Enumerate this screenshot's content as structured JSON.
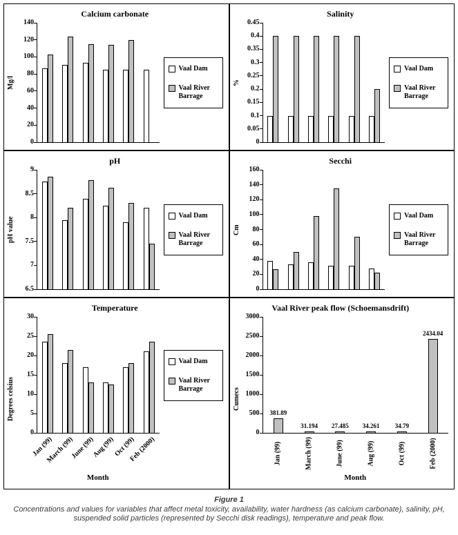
{
  "figure": {
    "caption_title": "Figure 1",
    "caption_text": "Concentrations and values for variables that affect metal toxicity, availability, water hardness (as calcium carbonate), salinity, pH, suspended solid particles (represented by Secchi disk readings), temperature and peak flow."
  },
  "colors": {
    "vaal_dam_fill": "#ffffff",
    "vaal_river_barrage_fill": "#c0c0c0",
    "axis_and_border": "#000000"
  },
  "chart_data": [
    {
      "id": "calcium-carbonate",
      "type": "bar",
      "title": "Calcium carbonate",
      "ylabel": "Mg/l",
      "xlabel": "",
      "ylim": [
        0,
        140
      ],
      "yticks": [
        0,
        20,
        40,
        60,
        80,
        100,
        120,
        140
      ],
      "categories": [
        "Jan (99)",
        "March (99)",
        "June (99)",
        "Aug (99)",
        "Oct (99)",
        "Feb (2000)"
      ],
      "series": [
        {
          "name": "Vaal Dam",
          "fill": "#ffffff",
          "values": [
            87,
            91,
            93,
            85,
            85,
            85
          ]
        },
        {
          "name": "Vaal River Barrage",
          "fill": "#c0c0c0",
          "values": [
            103,
            124,
            115,
            114,
            120,
            null
          ]
        }
      ],
      "grid": false,
      "legend": true,
      "legend_position": "right",
      "show_x_tick_labels": false,
      "x_tick_rotation": 0,
      "data_labels": false
    },
    {
      "id": "salinity",
      "type": "bar",
      "title": "Salinity",
      "ylabel": "%",
      "xlabel": "",
      "ylim": [
        0,
        0.45
      ],
      "yticks": [
        0,
        0.05,
        0.1,
        0.15,
        0.2,
        0.25,
        0.3,
        0.35,
        0.4,
        0.45
      ],
      "categories": [
        "Jan (99)",
        "March (99)",
        "June (99)",
        "Aug (99)",
        "Oct (99)",
        "Feb (2000)"
      ],
      "series": [
        {
          "name": "Vaal Dam",
          "fill": "#ffffff",
          "values": [
            0.1,
            0.1,
            0.1,
            0.1,
            0.1,
            0.1
          ]
        },
        {
          "name": "Vaal River Barrage",
          "fill": "#c0c0c0",
          "values": [
            0.4,
            0.4,
            0.4,
            0.4,
            0.4,
            0.2
          ]
        }
      ],
      "grid": false,
      "legend": true,
      "legend_position": "right",
      "show_x_tick_labels": false,
      "x_tick_rotation": 0,
      "data_labels": false
    },
    {
      "id": "ph",
      "type": "bar",
      "title": "pH",
      "ylabel": "pH value",
      "xlabel": "",
      "ylim": [
        6.5,
        9
      ],
      "yticks": [
        6.5,
        7,
        7.5,
        8,
        8.5,
        9
      ],
      "categories": [
        "Jan (99)",
        "March (99)",
        "June (99)",
        "Aug (99)",
        "Oct (99)",
        "Feb (2000)"
      ],
      "series": [
        {
          "name": "Vaal Dam",
          "fill": "#ffffff",
          "values": [
            8.75,
            7.95,
            8.4,
            8.25,
            7.9,
            8.2
          ]
        },
        {
          "name": "Vaal River Barrage",
          "fill": "#c0c0c0",
          "values": [
            8.85,
            8.2,
            8.78,
            8.63,
            8.3,
            7.45
          ]
        }
      ],
      "grid": false,
      "legend": true,
      "legend_position": "right",
      "show_x_tick_labels": false,
      "x_tick_rotation": 0,
      "data_labels": false
    },
    {
      "id": "secchi",
      "type": "bar",
      "title": "Secchi",
      "ylabel": "Cm",
      "xlabel": "",
      "ylim": [
        0,
        160
      ],
      "yticks": [
        0,
        20,
        40,
        60,
        80,
        100,
        120,
        140,
        160
      ],
      "categories": [
        "Jan (99)",
        "March (99)",
        "June (99)",
        "Aug (99)",
        "Oct (99)",
        "Feb (2000)"
      ],
      "series": [
        {
          "name": "Vaal Dam",
          "fill": "#ffffff",
          "values": [
            38,
            33,
            36,
            31,
            31,
            28
          ]
        },
        {
          "name": "Vaal River Barrage",
          "fill": "#c0c0c0",
          "values": [
            27,
            50,
            98,
            135,
            70,
            22
          ]
        }
      ],
      "grid": false,
      "legend": true,
      "legend_position": "right",
      "show_x_tick_labels": false,
      "x_tick_rotation": 0,
      "data_labels": false
    },
    {
      "id": "temperature",
      "type": "bar",
      "title": "Temperature",
      "ylabel": "Degrees celsius",
      "xlabel": "Month",
      "ylim": [
        0,
        30
      ],
      "yticks": [
        0,
        5,
        10,
        15,
        20,
        25,
        30
      ],
      "categories": [
        "Jan (99)",
        "March (99)",
        "June (99)",
        "Aug (99)",
        "Oct (99)",
        "Feb (2000)"
      ],
      "series": [
        {
          "name": "Vaal Dam",
          "fill": "#ffffff",
          "values": [
            23.5,
            18,
            17,
            13,
            17,
            21
          ]
        },
        {
          "name": "Vaal River Barrage",
          "fill": "#c0c0c0",
          "values": [
            25.5,
            21.5,
            13,
            12.5,
            18,
            23.5
          ]
        }
      ],
      "grid": false,
      "legend": true,
      "legend_position": "right",
      "show_x_tick_labels": true,
      "x_tick_rotation": 45,
      "data_labels": false
    },
    {
      "id": "peak-flow",
      "type": "bar",
      "title": "Vaal River peak flow (Schoemansdrift)",
      "ylabel": "Cumecs",
      "xlabel": "Month",
      "ylim": [
        0,
        3000
      ],
      "yticks": [
        0,
        500,
        1000,
        1500,
        2000,
        2500,
        3000
      ],
      "categories": [
        "Jan (99)",
        "March (99)",
        "June (99)",
        "Aug (99)",
        "Oct (99)",
        "Feb (2000)"
      ],
      "series": [
        {
          "name": "Vaal River peak flow",
          "fill": "#c0c0c0",
          "values": [
            381.89,
            31.194,
            27.485,
            34.261,
            34.79,
            2434.04
          ]
        }
      ],
      "grid": false,
      "legend": false,
      "legend_position": "none",
      "show_x_tick_labels": true,
      "x_tick_rotation": 90,
      "data_labels": true,
      "data_label_texts": [
        "381.89",
        "31.194",
        "27.485",
        "34.261",
        "34.79",
        "2434.04"
      ]
    }
  ]
}
